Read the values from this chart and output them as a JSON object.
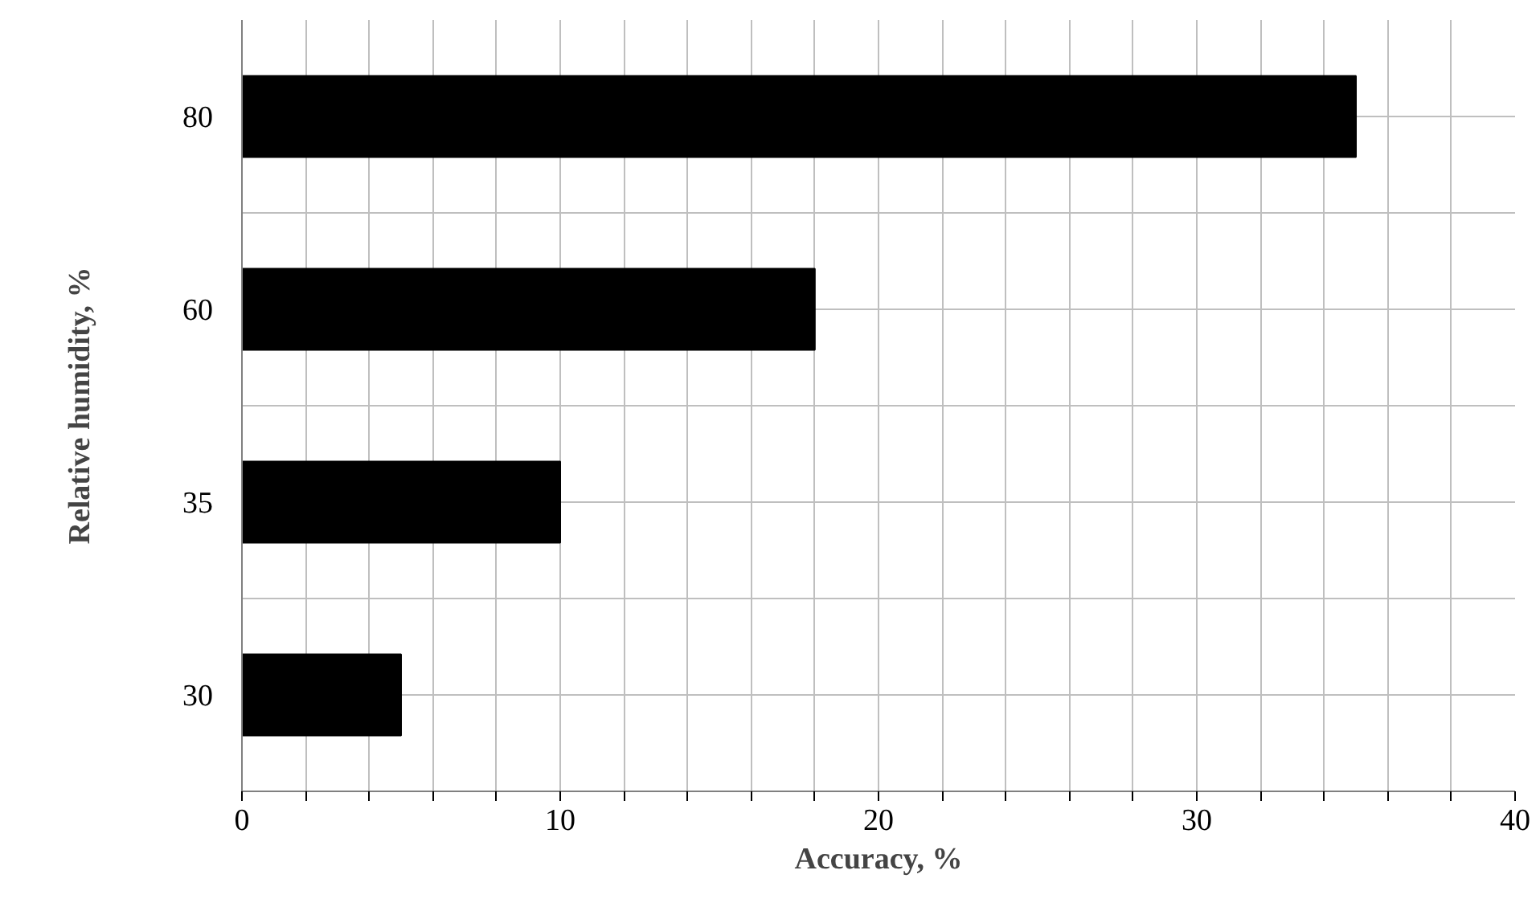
{
  "chart_data": {
    "type": "bar",
    "orientation": "horizontal",
    "xlabel": "Accuracy, %",
    "ylabel": "Relative humidity, %",
    "categories": [
      "80",
      "60",
      "35",
      "30"
    ],
    "values": [
      35,
      18,
      10,
      5
    ],
    "color": "#000000",
    "xlim": [
      0,
      40
    ],
    "xticks": [
      0,
      {
        "value": 2,
        "label": null
      },
      {
        "value": 4,
        "label": null
      },
      {
        "value": 6,
        "label": null
      },
      {
        "value": 8,
        "label": null
      },
      10,
      {
        "value": 12,
        "label": null
      },
      {
        "value": 14,
        "label": null
      },
      {
        "value": 16,
        "label": null
      },
      {
        "value": 18,
        "label": null
      },
      20,
      {
        "value": 22,
        "label": null
      },
      {
        "value": 24,
        "label": null
      },
      {
        "value": 26,
        "label": null
      },
      {
        "value": 28,
        "label": null
      },
      30,
      {
        "value": 32,
        "label": null
      },
      {
        "value": 34,
        "label": null
      },
      {
        "value": 36,
        "label": null
      },
      {
        "value": 38,
        "label": null
      },
      40
    ],
    "grid": true
  }
}
